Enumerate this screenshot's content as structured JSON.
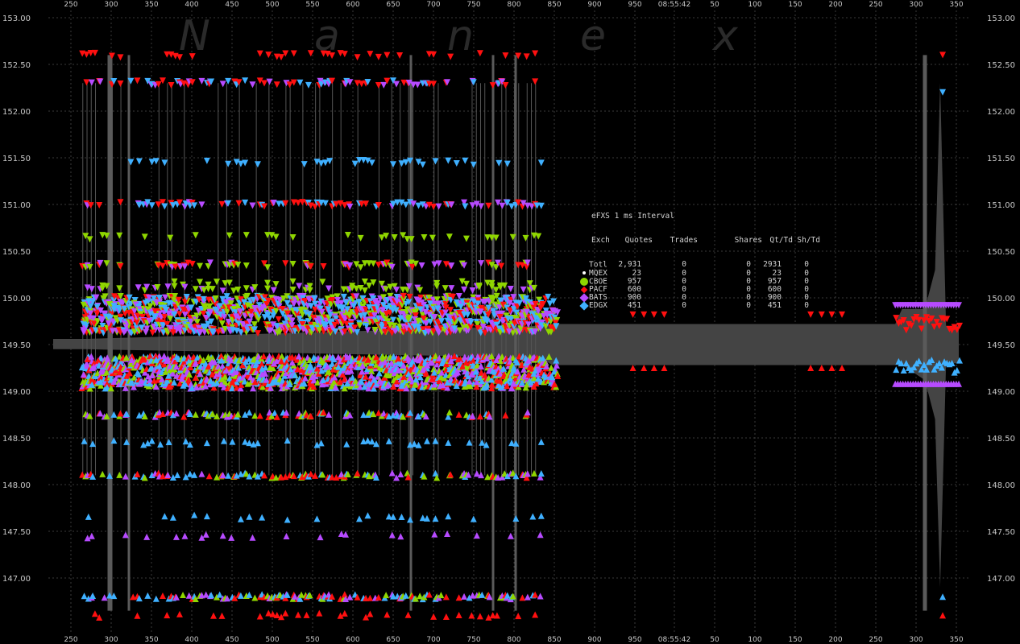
{
  "chart_data": {
    "type": "scatter",
    "title": "eFXS 1 ms Interval",
    "timestamp": "08:55:42",
    "watermark": [
      "N",
      "a",
      "n",
      "e",
      "x"
    ],
    "x_tick_labels": [
      "250",
      "300",
      "350",
      "400",
      "450",
      "500",
      "550",
      "600",
      "650",
      "700",
      "750",
      "800",
      "850",
      "900",
      "950",
      "08:55:42",
      "50",
      "100",
      "150",
      "200",
      "250",
      "300",
      "350"
    ],
    "y_ticks": [
      147.0,
      147.5,
      148.0,
      148.5,
      149.0,
      149.5,
      150.0,
      150.5,
      151.0,
      151.5,
      152.0,
      152.5,
      153.0
    ],
    "y_tick_labels": [
      "147.00",
      "147.50",
      "148.00",
      "148.50",
      "149.00",
      "149.50",
      "150.00",
      "150.50",
      "151.00",
      "151.50",
      "152.00",
      "152.50",
      "153.00"
    ],
    "ylim": [
      146.6,
      153.05
    ],
    "grid": true,
    "nbbo_spread": [
      {
        "t": 230,
        "bid": 149.45,
        "ask": 149.56
      },
      {
        "t": 268,
        "bid": 149.45,
        "ask": 149.56
      },
      {
        "t": 805,
        "bid": 149.36,
        "ask": 149.7
      },
      {
        "t": 820,
        "bid": 149.28,
        "ask": 149.72
      },
      {
        "t": 1225,
        "bid": 149.28,
        "ask": 149.72
      },
      {
        "t": 1233,
        "bid": 149.28,
        "ask": 149.88
      },
      {
        "t": 1260,
        "bid": 149.12,
        "ask": 149.88
      },
      {
        "t": 1272,
        "bid": 148.7,
        "ask": 150.3
      },
      {
        "t": 1278,
        "bid": 146.9,
        "ask": 152.3
      },
      {
        "t": 1285,
        "bid": 149.3,
        "ask": 149.7
      },
      {
        "t": 1295,
        "bid": 149.3,
        "ask": 149.7
      },
      {
        "t": 1300,
        "bid": 149.3,
        "ask": 149.7
      }
    ],
    "series": [
      {
        "name": "MQEX",
        "color": "#ffffff",
        "ask_levels": [],
        "bid_levels": []
      },
      {
        "name": "CBOE",
        "color": "#8fd600",
        "ask_levels": [
          150.35,
          150.1,
          149.85,
          149.65,
          150.65,
          150.15
        ],
        "bid_levels": [
          149.35,
          149.25,
          149.1,
          148.75,
          148.1,
          146.8
        ]
      },
      {
        "name": "PACF",
        "color": "#ff1010",
        "ask_levels": [
          152.6,
          152.3,
          151.0,
          150.35,
          149.85,
          149.65
        ],
        "bid_levels": [
          149.35,
          149.1,
          148.75,
          148.1,
          146.8,
          146.6
        ]
      },
      {
        "name": "BATS",
        "color": "#b74bff",
        "ask_levels": [
          152.3,
          151.0,
          150.35,
          150.1,
          149.85,
          149.65,
          149.95
        ],
        "bid_levels": [
          149.35,
          149.25,
          149.1,
          148.75,
          148.1,
          146.8,
          147.45
        ]
      },
      {
        "name": "EDGX",
        "color": "#3fb0ff",
        "ask_levels": [
          152.3,
          151.0,
          151.45,
          149.95,
          149.75
        ],
        "bid_levels": [
          149.35,
          149.25,
          149.1,
          148.75,
          148.1,
          146.8,
          147.65,
          148.45
        ]
      }
    ],
    "activity_range": [
      265,
      805
    ],
    "late_activity_range": [
      1225,
      1300
    ],
    "late_events": [
      {
        "t": 915,
        "exch": "PACF"
      },
      {
        "t": 928,
        "exch": "PACF"
      },
      {
        "t": 940,
        "exch": "PACF"
      },
      {
        "t": 952,
        "exch": "PACF"
      },
      {
        "t": 1125,
        "exch": "PACF"
      },
      {
        "t": 1138,
        "exch": "PACF"
      },
      {
        "t": 1150,
        "exch": "PACF"
      },
      {
        "t": 1162,
        "exch": "PACF"
      }
    ]
  },
  "legend": {
    "title": "eFXS 1 ms Interval",
    "headers": [
      "Exch",
      "Quotes",
      "Trades",
      "Shares",
      "Qt/Td",
      "Sh/Td"
    ],
    "rows": [
      {
        "exch": "Totl",
        "quotes": "2,931",
        "trades": "0",
        "shares": "0",
        "qt_td": "2931",
        "sh_td": "0",
        "color": "",
        "marker": "none"
      },
      {
        "exch": "MQEX",
        "quotes": "23",
        "trades": "0",
        "shares": "0",
        "qt_td": "23",
        "sh_td": "0",
        "color": "#ffffff",
        "marker": "dot"
      },
      {
        "exch": "CBOE",
        "quotes": "957",
        "trades": "0",
        "shares": "0",
        "qt_td": "957",
        "sh_td": "0",
        "color": "#8fd600",
        "marker": "hex"
      },
      {
        "exch": "PACF",
        "quotes": "600",
        "trades": "0",
        "shares": "0",
        "qt_td": "600",
        "sh_td": "0",
        "color": "#ff1010",
        "marker": "diamond-sm"
      },
      {
        "exch": "BATS",
        "quotes": "900",
        "trades": "0",
        "shares": "0",
        "qt_td": "900",
        "sh_td": "0",
        "color": "#b74bff",
        "marker": "diamond"
      },
      {
        "exch": "EDGX",
        "quotes": "451",
        "trades": "0",
        "shares": "0",
        "qt_td": "451",
        "sh_td": "0",
        "color": "#3fb0ff",
        "marker": "diamond"
      }
    ]
  }
}
